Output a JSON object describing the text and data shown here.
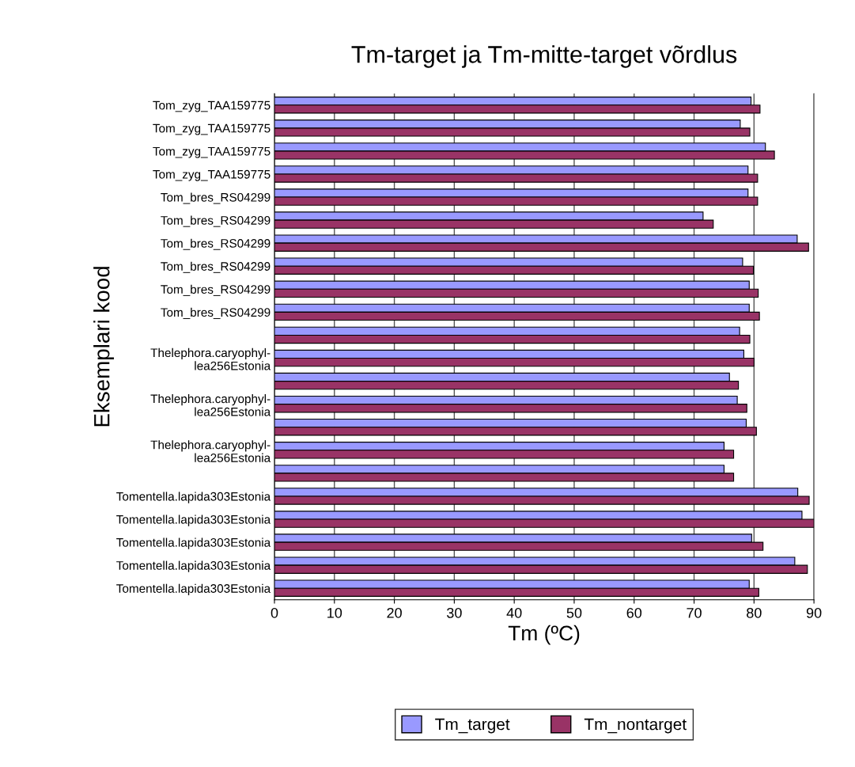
{
  "chart_data": {
    "type": "bar",
    "orientation": "horizontal",
    "title": "Tm-target ja Tm-mitte-target võrdlus",
    "xlabel": "Tm (ºC)",
    "ylabel": "Eksemplari kood",
    "categories": [
      "Tom_zyg_TAA159775",
      "Tom_zyg_TAA159775",
      "Tom_zyg_TAA159775",
      "Tom_zyg_TAA159775",
      "Tom_bres_RS04299",
      "Tom_bres_RS04299",
      "Tom_bres_RS04299",
      "Tom_bres_RS04299",
      "Tom_bres_RS04299",
      "Tom_bres_RS04299",
      null,
      "Thelephora.caryophyl-\nlea256Estonia",
      null,
      "Thelephora.caryophyl-\nlea256Estonia",
      null,
      "Thelephora.caryophyl-\nlea256Estonia",
      null,
      "Tomentella.lapida303Estonia",
      "Tomentella.lapida303Estonia",
      "Tomentella.lapida303Estonia",
      "Tomentella.lapida303Estonia",
      "Tomentella.lapida303Estonia"
    ],
    "series": [
      {
        "name": "Tm_target",
        "color": "#9999ff",
        "values": [
          79.5,
          77.7,
          81.9,
          79.0,
          79.0,
          71.5,
          87.2,
          78.1,
          79.2,
          79.2,
          77.6,
          78.3,
          75.9,
          77.2,
          78.7,
          75.0,
          75.0,
          87.3,
          88.0,
          79.6,
          86.8,
          79.2
        ]
      },
      {
        "name": "Tm_nontarget",
        "color": "#993366",
        "values": [
          81.0,
          79.3,
          83.4,
          80.6,
          80.6,
          73.2,
          89.1,
          79.9,
          80.7,
          80.9,
          79.3,
          80.0,
          77.4,
          78.8,
          80.4,
          76.6,
          76.6,
          89.2,
          90.0,
          81.5,
          88.9,
          80.8
        ]
      }
    ],
    "xlim": [
      0,
      90
    ],
    "xticks": [
      0,
      10,
      20,
      30,
      40,
      50,
      60,
      70,
      80,
      90
    ],
    "grid": "x",
    "legend": "bottom"
  }
}
